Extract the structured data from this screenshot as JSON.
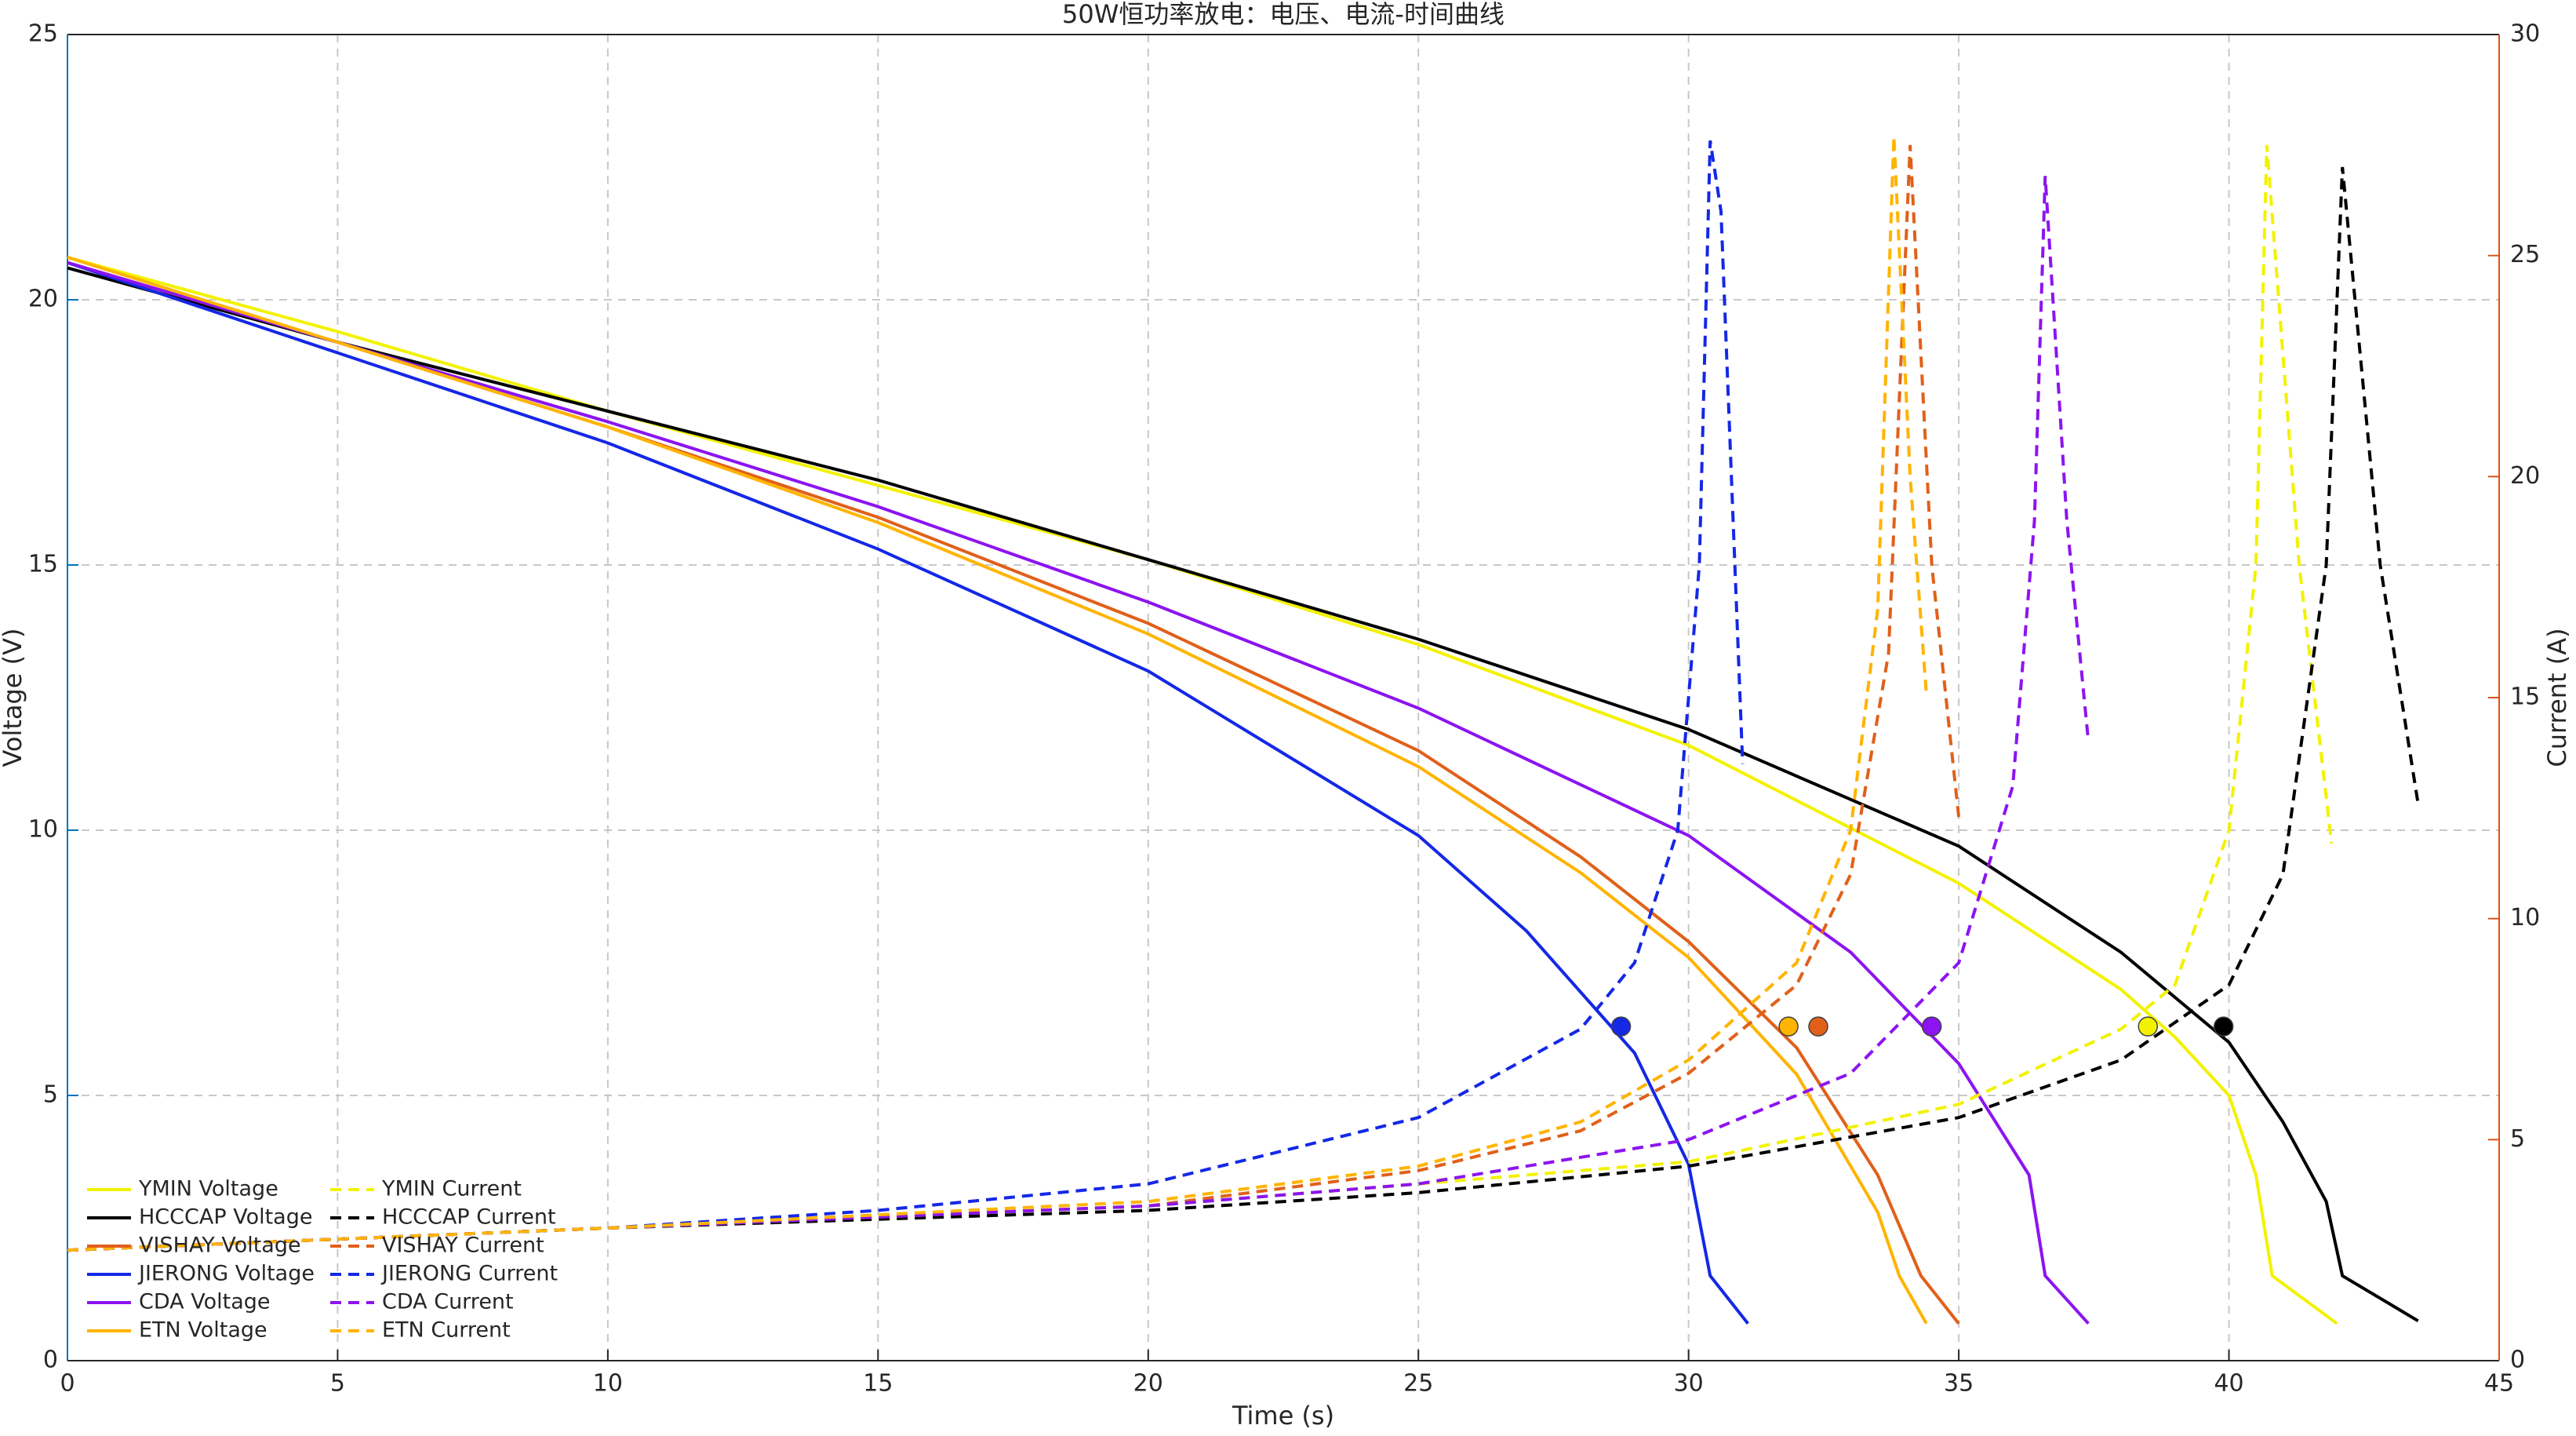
{
  "chart_data": {
    "type": "line",
    "title": "50W恒功率放电：电压、电流-时间曲线",
    "x_label": "Time (s)",
    "y_label": "Voltage (V)",
    "y2_label": "Current (A)",
    "xlim": [
      0,
      45
    ],
    "xticks": [
      0,
      5,
      10,
      15,
      20,
      25,
      30,
      35,
      40,
      45
    ],
    "ylim": [
      0,
      25
    ],
    "yticks": [
      0,
      5,
      10,
      15,
      20,
      25
    ],
    "y2lim": [
      0,
      30
    ],
    "y2ticks": [
      0,
      5,
      10,
      15,
      20,
      25,
      30
    ],
    "y_color": "#0072bd",
    "y2_color": "#d95319",
    "grid": true,
    "legend": "lower left",
    "series": [
      {
        "name": "YMIN Voltage",
        "color": "#f2f200",
        "style": "solid",
        "x": [
          0,
          5,
          10,
          15,
          20,
          25,
          30,
          35,
          38,
          39,
          40,
          40.5,
          40.8,
          42
        ],
        "values": [
          20.8,
          19.4,
          17.9,
          16.5,
          15.1,
          13.5,
          11.6,
          9.0,
          7.0,
          6.1,
          5.0,
          3.5,
          1.6,
          0.7
        ],
        "marker_x": 38.5,
        "marker_y": 6.3
      },
      {
        "name": "HCCCAP Voltage",
        "color": "#000000",
        "style": "solid",
        "x": [
          0,
          5,
          10,
          15,
          20,
          25,
          30,
          35,
          38,
          40,
          41,
          41.8,
          42.1,
          43.5
        ],
        "values": [
          20.6,
          19.2,
          17.9,
          16.6,
          15.1,
          13.6,
          11.9,
          9.7,
          7.7,
          6.0,
          4.5,
          3.0,
          1.6,
          0.75
        ],
        "marker_x": 39.9,
        "marker_y": 6.3
      },
      {
        "name": "VISHAY Voltage",
        "color": "#e0601a",
        "style": "solid",
        "x": [
          0,
          5,
          10,
          15,
          20,
          25,
          28,
          30,
          32,
          33.5,
          34.3,
          35
        ],
        "values": [
          20.7,
          19.2,
          17.6,
          15.9,
          13.9,
          11.5,
          9.5,
          7.9,
          5.9,
          3.5,
          1.6,
          0.7
        ],
        "marker_x": 32.4,
        "marker_y": 6.3
      },
      {
        "name": "JIERONG Voltage",
        "color": "#1428e6",
        "style": "solid",
        "x": [
          0,
          5,
          10,
          15,
          20,
          25,
          27,
          29,
          30,
          30.4,
          31.1
        ],
        "values": [
          20.7,
          19.0,
          17.3,
          15.3,
          13.0,
          9.9,
          8.1,
          5.8,
          3.7,
          1.6,
          0.7
        ],
        "marker_x": 28.75,
        "marker_y": 6.3
      },
      {
        "name": "CDA Voltage",
        "color": "#8c14f0",
        "style": "solid",
        "x": [
          0,
          5,
          10,
          15,
          20,
          25,
          30,
          33,
          35,
          36.3,
          36.6,
          37.4
        ],
        "values": [
          20.7,
          19.2,
          17.7,
          16.1,
          14.3,
          12.3,
          9.9,
          7.7,
          5.6,
          3.5,
          1.6,
          0.7
        ],
        "marker_x": 34.5,
        "marker_y": 6.3
      },
      {
        "name": "ETN Voltage",
        "color": "#ffb400",
        "style": "solid",
        "x": [
          0,
          5,
          10,
          15,
          20,
          25,
          28,
          30,
          32,
          33.5,
          33.9,
          34.4
        ],
        "values": [
          20.8,
          19.2,
          17.6,
          15.8,
          13.7,
          11.2,
          9.2,
          7.6,
          5.4,
          2.8,
          1.6,
          0.7
        ],
        "marker_x": 31.85,
        "marker_y": 6.3
      },
      {
        "name": "YMIN Current",
        "color": "#f2f200",
        "style": "dashed",
        "axis": "y2",
        "x": [
          0,
          10,
          20,
          25,
          30,
          35,
          38,
          39,
          40,
          40.5,
          40.7,
          41.3,
          41.9
        ],
        "values": [
          2.5,
          3.0,
          3.5,
          4.0,
          4.5,
          5.8,
          7.5,
          8.5,
          12,
          18,
          27.5,
          18,
          11.7
        ]
      },
      {
        "name": "HCCCAP Current",
        "color": "#000000",
        "style": "dashed",
        "axis": "y2",
        "x": [
          0,
          10,
          20,
          25,
          30,
          35,
          38,
          40,
          41,
          41.8,
          42.1,
          42.8,
          43.5
        ],
        "values": [
          2.5,
          3.0,
          3.4,
          3.8,
          4.4,
          5.5,
          6.8,
          8.5,
          11,
          18,
          27.0,
          18,
          12.6
        ]
      },
      {
        "name": "VISHAY Current",
        "color": "#e0601a",
        "style": "dashed",
        "axis": "y2",
        "x": [
          0,
          10,
          20,
          25,
          28,
          30,
          32,
          33,
          33.7,
          34.1,
          34.5,
          35
        ],
        "values": [
          2.5,
          3.0,
          3.5,
          4.3,
          5.2,
          6.5,
          8.5,
          11,
          16,
          27.5,
          18,
          12.3
        ]
      },
      {
        "name": "JIERONG Current",
        "color": "#1428e6",
        "style": "dashed",
        "axis": "y2",
        "x": [
          0,
          10,
          15,
          20,
          25,
          28,
          29,
          29.8,
          30.2,
          30.4,
          30.6,
          31
        ],
        "values": [
          2.5,
          3.0,
          3.4,
          4.0,
          5.5,
          7.5,
          9,
          12,
          18,
          27.6,
          26,
          13.5
        ]
      },
      {
        "name": "CDA Current",
        "color": "#8c14f0",
        "style": "dashed",
        "axis": "y2",
        "x": [
          0,
          10,
          20,
          25,
          30,
          33,
          35,
          36,
          36.4,
          36.6,
          37,
          37.4
        ],
        "values": [
          2.5,
          3.0,
          3.5,
          4.0,
          5.0,
          6.5,
          9,
          13,
          19,
          26.8,
          19,
          14.0
        ]
      },
      {
        "name": "ETN Current",
        "color": "#ffb400",
        "style": "dashed",
        "axis": "y2",
        "x": [
          0,
          10,
          20,
          25,
          28,
          30,
          32,
          33,
          33.5,
          33.8,
          34.1,
          34.4
        ],
        "values": [
          2.5,
          3.0,
          3.6,
          4.4,
          5.4,
          6.8,
          9,
          12,
          17,
          27.7,
          20,
          15.1
        ]
      }
    ]
  }
}
